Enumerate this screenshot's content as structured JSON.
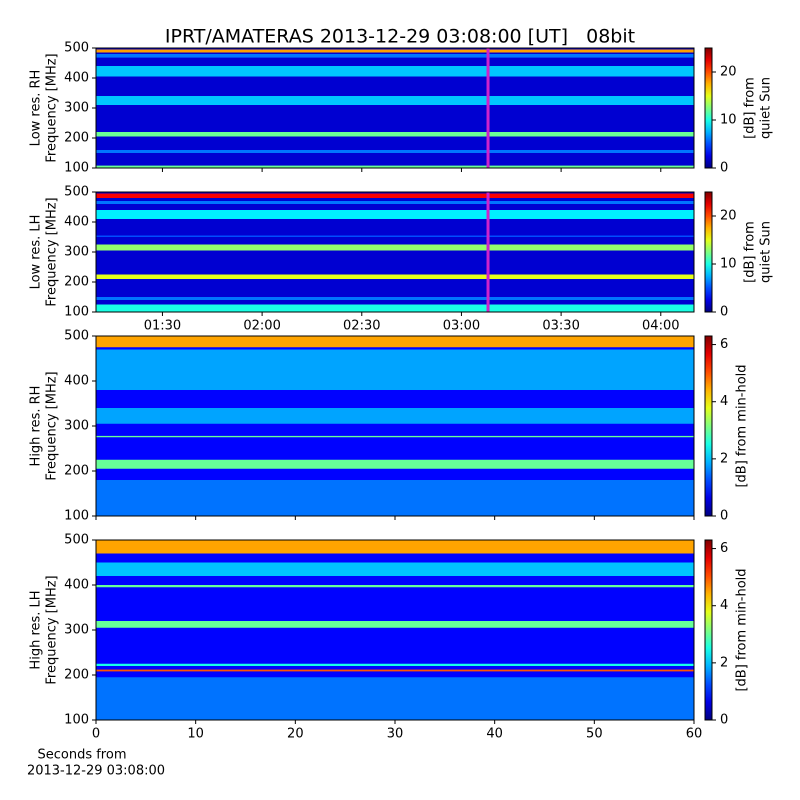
{
  "chart_data": {
    "type": "spectrogram",
    "title": "IPRT/AMATERAS 2013-12-29 03:08:00 [UT]   08bit",
    "colormap": "jet",
    "panels": [
      {
        "ylabel": [
          "Low res. RH",
          "Frequency [MHz]"
        ],
        "ylim": [
          100,
          500
        ],
        "yticks": [
          100,
          200,
          300,
          400,
          500
        ],
        "xlim": [
          70,
          250
        ],
        "xticks": [
          {
            "value": 90,
            "label": "01:30"
          },
          {
            "value": 120,
            "label": "02:00"
          },
          {
            "value": 150,
            "label": "02:30"
          },
          {
            "value": 180,
            "label": "03:00"
          },
          {
            "value": 210,
            "label": "03:30"
          },
          {
            "value": 240,
            "label": "04:00"
          }
        ],
        "show_xtick_labels": false,
        "background": 2,
        "bands": [
          {
            "from": 100,
            "to": 108,
            "level": 12
          },
          {
            "from": 150,
            "to": 160,
            "level": 6
          },
          {
            "from": 205,
            "to": 220,
            "level": 12
          },
          {
            "from": 310,
            "to": 340,
            "level": 8
          },
          {
            "from": 405,
            "to": 440,
            "level": 8
          },
          {
            "from": 468,
            "to": 480,
            "level": 6
          },
          {
            "from": 485,
            "to": 495,
            "level": 18
          }
        ],
        "marker": {
          "x": 188,
          "color": "#cc22cc"
        },
        "clim": [
          0,
          25
        ],
        "cticks": [
          0,
          10,
          20
        ],
        "clabel": [
          "[dB] from",
          "quiet Sun"
        ]
      },
      {
        "ylabel": [
          "Low res. LH",
          "Frequency [MHz]"
        ],
        "ylim": [
          100,
          500
        ],
        "yticks": [
          100,
          200,
          300,
          400,
          500
        ],
        "xlim": [
          70,
          250
        ],
        "xticks": [
          {
            "value": 90,
            "label": "01:30"
          },
          {
            "value": 120,
            "label": "02:00"
          },
          {
            "value": 150,
            "label": "02:30"
          },
          {
            "value": 180,
            "label": "03:00"
          },
          {
            "value": 210,
            "label": "03:30"
          },
          {
            "value": 240,
            "label": "04:00"
          }
        ],
        "show_xtick_labels": true,
        "background": 2,
        "bands": [
          {
            "from": 100,
            "to": 125,
            "level": 10
          },
          {
            "from": 140,
            "to": 150,
            "level": 6
          },
          {
            "from": 210,
            "to": 225,
            "level": 15
          },
          {
            "from": 305,
            "to": 325,
            "level": 13
          },
          {
            "from": 350,
            "to": 355,
            "level": 5
          },
          {
            "from": 410,
            "to": 440,
            "level": 9
          },
          {
            "from": 460,
            "to": 470,
            "level": 6
          },
          {
            "from": 480,
            "to": 495,
            "level": 22
          }
        ],
        "marker": {
          "x": 188,
          "color": "#cc22cc"
        },
        "clim": [
          0,
          25
        ],
        "cticks": [
          0,
          10,
          20
        ],
        "clabel": [
          "[dB] from",
          "quiet Sun"
        ]
      },
      {
        "ylabel": [
          "High res. RH",
          "Frequency [MHz]"
        ],
        "ylim": [
          100,
          500
        ],
        "yticks": [
          100,
          200,
          300,
          400,
          500
        ],
        "xlim": [
          0,
          60
        ],
        "xticks": [
          0,
          10,
          20,
          30,
          40,
          50,
          60
        ],
        "show_xtick_labels": false,
        "background": 0.8,
        "bands": [
          {
            "from": 100,
            "to": 180,
            "level": 1.5
          },
          {
            "from": 205,
            "to": 225,
            "level": 3
          },
          {
            "from": 275,
            "to": 278,
            "level": 3
          },
          {
            "from": 305,
            "to": 340,
            "level": 1.8
          },
          {
            "from": 380,
            "to": 470,
            "level": 1.8
          },
          {
            "from": 475,
            "to": 500,
            "level": 4.5
          }
        ],
        "clim": [
          0,
          6.3
        ],
        "cticks": [
          0,
          2,
          4,
          6
        ],
        "clabel": [
          "[dB] from min-hold"
        ]
      },
      {
        "ylabel": [
          "High res. LH",
          "Frequency [MHz]"
        ],
        "ylim": [
          100,
          500
        ],
        "yticks": [
          100,
          200,
          300,
          400,
          500
        ],
        "xlim": [
          0,
          60
        ],
        "xticks": [
          0,
          10,
          20,
          30,
          40,
          50,
          60
        ],
        "show_xtick_labels": true,
        "xlabel": [
          "Seconds from",
          "2013-12-29 03:08:00"
        ],
        "background": 0.8,
        "bands": [
          {
            "from": 100,
            "to": 195,
            "level": 1.5
          },
          {
            "from": 208,
            "to": 212,
            "level": 5
          },
          {
            "from": 220,
            "to": 225,
            "level": 2.5
          },
          {
            "from": 305,
            "to": 320,
            "level": 3
          },
          {
            "from": 395,
            "to": 400,
            "level": 3
          },
          {
            "from": 420,
            "to": 450,
            "level": 2
          },
          {
            "from": 470,
            "to": 500,
            "level": 4.5
          }
        ],
        "clim": [
          0,
          6.3
        ],
        "cticks": [
          0,
          2,
          4,
          6
        ],
        "clabel": [
          "[dB] from min-hold"
        ]
      }
    ]
  }
}
